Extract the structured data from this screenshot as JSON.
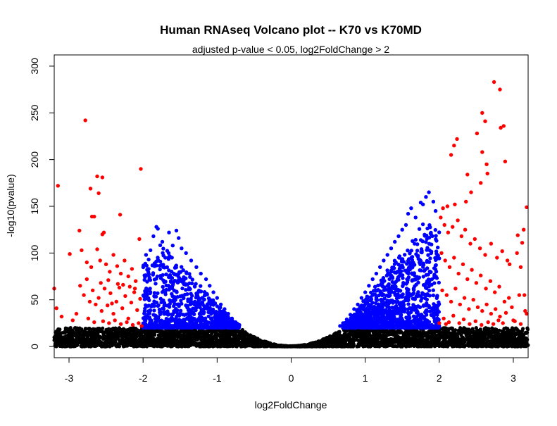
{
  "chart_data": {
    "type": "scatter",
    "title": "Human RNAseq Volcano plot -- K70 vs K70MD",
    "subtitle": "adjusted p-value < 0.05, log2FoldChange > 2",
    "xlabel": "log2FoldChange",
    "ylabel": "-log10(pvalue)",
    "xlim": [
      -3.2,
      3.2
    ],
    "ylim": [
      -12,
      312
    ],
    "xticks": [
      -3,
      -2,
      -1,
      0,
      1,
      2,
      3
    ],
    "yticks": [
      0,
      50,
      100,
      150,
      200,
      250,
      300
    ],
    "grid": false,
    "legend": "none",
    "colors": {
      "not_significant": "#000000",
      "padj_significant": "#0000FF",
      "padj_and_fc_significant": "#FF0000"
    },
    "series": [
      {
        "color": "#FF0000",
        "points": [
          [
            -3.15,
            172
          ],
          [
            -2.78,
            242
          ],
          [
            -2.62,
            182
          ],
          [
            -2.55,
            181
          ],
          [
            -2.71,
            169
          ],
          [
            -2.6,
            164
          ],
          [
            -2.66,
            139
          ],
          [
            -2.69,
            139
          ],
          [
            -2.03,
            190
          ],
          [
            -2.31,
            141
          ],
          [
            -2.86,
            124
          ],
          [
            -2.53,
            122
          ],
          [
            -2.55,
            120
          ],
          [
            -3.2,
            62
          ],
          [
            -3.17,
            41
          ],
          [
            -3.1,
            32
          ],
          [
            -2.99,
            99
          ],
          [
            -2.83,
            103
          ],
          [
            -2.76,
            90
          ],
          [
            -2.7,
            85
          ],
          [
            -2.62,
            104
          ],
          [
            -2.58,
            92
          ],
          [
            -2.5,
            88
          ],
          [
            -2.45,
            80
          ],
          [
            -2.4,
            98
          ],
          [
            -2.35,
            86
          ],
          [
            -2.3,
            78
          ],
          [
            -2.25,
            92
          ],
          [
            -2.2,
            75
          ],
          [
            -2.15,
            83
          ],
          [
            -2.1,
            70
          ],
          [
            -2.05,
            115
          ],
          [
            -2.85,
            65
          ],
          [
            -2.8,
            55
          ],
          [
            -2.72,
            48
          ],
          [
            -2.68,
            60
          ],
          [
            -2.64,
            45
          ],
          [
            -2.6,
            52
          ],
          [
            -2.56,
            38
          ],
          [
            -2.52,
            62
          ],
          [
            -2.48,
            44
          ],
          [
            -2.44,
            57
          ],
          [
            -2.4,
            35
          ],
          [
            -2.36,
            48
          ],
          [
            -2.32,
            63
          ],
          [
            -2.28,
            41
          ],
          [
            -2.24,
            54
          ],
          [
            -2.2,
            30
          ],
          [
            -2.16,
            47
          ],
          [
            -2.12,
            58
          ],
          [
            -2.08,
            39
          ],
          [
            -2.04,
            51
          ],
          [
            -2.9,
            35
          ],
          [
            -2.95,
            28
          ],
          [
            -2.74,
            30
          ],
          [
            -2.66,
            26
          ],
          [
            -2.54,
            27
          ],
          [
            -2.46,
            25
          ],
          [
            -2.38,
            28
          ],
          [
            -2.3,
            24
          ],
          [
            -2.22,
            26
          ],
          [
            -2.14,
            23
          ],
          [
            -2.06,
            25
          ],
          [
            -2.02,
            22
          ],
          [
            -2.76,
            72
          ],
          [
            -2.57,
            68
          ],
          [
            -2.47,
            71
          ],
          [
            -2.34,
            67
          ],
          [
            -2.27,
            66
          ],
          [
            -2.18,
            64
          ],
          [
            -2.11,
            62
          ],
          [
            -2.42,
            46
          ],
          [
            2.58,
            250
          ],
          [
            2.74,
            283
          ],
          [
            2.82,
            275
          ],
          [
            2.87,
            236
          ],
          [
            2.83,
            234
          ],
          [
            2.62,
            241
          ],
          [
            2.51,
            228
          ],
          [
            2.58,
            208
          ],
          [
            2.24,
            222
          ],
          [
            2.2,
            215
          ],
          [
            2.16,
            205
          ],
          [
            2.89,
            198
          ],
          [
            2.64,
            195
          ],
          [
            2.38,
            184
          ],
          [
            2.65,
            185
          ],
          [
            2.56,
            175
          ],
          [
            2.43,
            165
          ],
          [
            2.36,
            155
          ],
          [
            2.21,
            152
          ],
          [
            2.11,
            150
          ],
          [
            2.05,
            148
          ],
          [
            3.18,
            149
          ],
          [
            3.06,
            119
          ],
          [
            3.14,
            125
          ],
          [
            3.12,
            111
          ],
          [
            3.05,
            100
          ],
          [
            3.1,
            85
          ],
          [
            3.15,
            55
          ],
          [
            3.16,
            38
          ],
          [
            3.18,
            35
          ],
          [
            3.08,
            55
          ],
          [
            2.98,
            42
          ],
          [
            2.02,
            138
          ],
          [
            2.07,
            130
          ],
          [
            2.12,
            122
          ],
          [
            2.18,
            128
          ],
          [
            2.25,
            135
          ],
          [
            2.3,
            118
          ],
          [
            2.35,
            125
          ],
          [
            2.42,
            110
          ],
          [
            2.48,
            115
          ],
          [
            2.55,
            105
          ],
          [
            2.62,
            98
          ],
          [
            2.7,
            110
          ],
          [
            2.78,
            95
          ],
          [
            2.85,
            102
          ],
          [
            2.92,
            92
          ],
          [
            2.95,
            88
          ],
          [
            2.03,
            100
          ],
          [
            2.08,
            92
          ],
          [
            2.14,
            85
          ],
          [
            2.2,
            95
          ],
          [
            2.26,
            78
          ],
          [
            2.32,
            88
          ],
          [
            2.38,
            72
          ],
          [
            2.44,
            82
          ],
          [
            2.5,
            68
          ],
          [
            2.56,
            76
          ],
          [
            2.63,
            62
          ],
          [
            2.69,
            70
          ],
          [
            2.75,
            58
          ],
          [
            2.81,
            64
          ],
          [
            2.88,
            48
          ],
          [
            2.94,
            52
          ],
          [
            2.04,
            60
          ],
          [
            2.1,
            55
          ],
          [
            2.16,
            48
          ],
          [
            2.22,
            62
          ],
          [
            2.28,
            45
          ],
          [
            2.34,
            52
          ],
          [
            2.4,
            40
          ],
          [
            2.46,
            50
          ],
          [
            2.52,
            42
          ],
          [
            2.58,
            38
          ],
          [
            2.64,
            45
          ],
          [
            2.7,
            35
          ],
          [
            2.76,
            40
          ],
          [
            2.82,
            32
          ],
          [
            2.9,
            36
          ],
          [
            3.0,
            28
          ],
          [
            2.06,
            30
          ],
          [
            2.13,
            26
          ],
          [
            2.19,
            33
          ],
          [
            2.27,
            25
          ],
          [
            2.33,
            29
          ],
          [
            2.41,
            24
          ],
          [
            2.49,
            27
          ],
          [
            2.57,
            23
          ],
          [
            2.66,
            26
          ],
          [
            2.73,
            24
          ],
          [
            2.8,
            28
          ],
          [
            2.86,
            25
          ],
          [
            3.02,
            27
          ],
          [
            3.1,
            24
          ],
          [
            2.0,
            25
          ],
          [
            2.09,
            24
          ]
        ]
      },
      {
        "color": "#0000FF",
        "points": [
          [
            -1.82,
            128
          ],
          [
            -1.8,
            126
          ],
          [
            -1.65,
            122
          ],
          [
            -1.55,
            124
          ],
          [
            -1.52,
            116
          ],
          [
            -1.86,
            118
          ],
          [
            -1.74,
            112
          ],
          [
            -1.6,
            108
          ],
          [
            -1.48,
            105
          ],
          [
            -1.42,
            100
          ],
          [
            -1.9,
            103
          ],
          [
            -1.96,
            98
          ],
          [
            -1.7,
            95
          ],
          [
            -1.35,
            92
          ],
          [
            -1.28,
            85
          ],
          [
            -1.22,
            78
          ],
          [
            -1.15,
            72
          ],
          [
            -1.1,
            65
          ],
          [
            -1.05,
            58
          ],
          [
            -1.0,
            52
          ],
          [
            -0.95,
            45
          ],
          [
            -0.9,
            40
          ],
          [
            -0.85,
            35
          ],
          [
            -0.8,
            30
          ],
          [
            -0.75,
            26
          ],
          [
            -0.7,
            23
          ],
          [
            1.78,
            152
          ],
          [
            1.82,
            160
          ],
          [
            1.75,
            154
          ],
          [
            1.62,
            148
          ],
          [
            1.58,
            142
          ],
          [
            1.86,
            165
          ],
          [
            1.92,
            155
          ],
          [
            1.95,
            145
          ],
          [
            1.68,
            138
          ],
          [
            1.55,
            130
          ],
          [
            1.5,
            125
          ],
          [
            1.45,
            118
          ],
          [
            1.4,
            112
          ],
          [
            1.35,
            105
          ],
          [
            1.3,
            98
          ],
          [
            1.25,
            92
          ],
          [
            1.2,
            85
          ],
          [
            1.15,
            78
          ],
          [
            1.1,
            72
          ],
          [
            1.05,
            65
          ],
          [
            1.0,
            58
          ],
          [
            0.95,
            52
          ],
          [
            0.9,
            45
          ],
          [
            0.85,
            40
          ],
          [
            0.8,
            34
          ],
          [
            0.75,
            29
          ],
          [
            0.7,
            25
          ],
          [
            0.66,
            22
          ]
        ],
        "bands": [
          {
            "from": -2.0,
            "to": -0.7,
            "peak_x": -1.75,
            "peak_y": 110,
            "count": 900
          },
          {
            "from": 0.7,
            "to": 2.0,
            "peak_x": 1.85,
            "peak_y": 140,
            "count": 1300
          }
        ]
      },
      {
        "color": "#000000",
        "bands": [
          {
            "from": -3.2,
            "to": 3.2,
            "max_y": 20,
            "count": 3800
          }
        ]
      }
    ]
  }
}
